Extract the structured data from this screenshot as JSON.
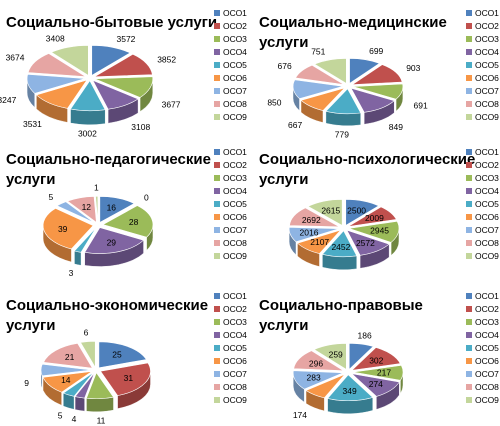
{
  "legend": {
    "items": [
      "ОСО1",
      "ОСО2",
      "ОСО3",
      "ОСО4",
      "ОСО5",
      "ОСО6",
      "ОСО7",
      "ОСО8",
      "ОСО9"
    ],
    "colors": [
      "#4f81bd",
      "#c0504d",
      "#9bbb59",
      "#8064a2",
      "#4bacc6",
      "#f79646",
      "#8eb4e3",
      "#e6a5a3",
      "#c3d69b"
    ]
  },
  "chart_data": [
    {
      "type": "pie",
      "title_lines": [
        "Социально-бытовые услуги"
      ],
      "categories": [
        "ОСО1",
        "ОСО2",
        "ОСО3",
        "ОСО4",
        "ОСО5",
        "ОСО6",
        "ОСО7",
        "ОСО8",
        "ОСО9"
      ],
      "values": [
        3572,
        3852,
        3677,
        3108,
        3002,
        3531,
        3247,
        3674,
        3408
      ]
    },
    {
      "type": "pie",
      "title_lines": [
        "Социально-медицинские",
        "услуги"
      ],
      "categories": [
        "ОСО1",
        "ОСО2",
        "ОСО3",
        "ОСО4",
        "ОСО5",
        "ОСО6",
        "ОСО7",
        "ОСО8",
        "ОСО9"
      ],
      "values": [
        699,
        903,
        691,
        849,
        779,
        667,
        850,
        676,
        751
      ]
    },
    {
      "type": "pie",
      "title_lines": [
        "Социально-педагогические",
        "услуги"
      ],
      "categories": [
        "ОСО1",
        "ОСО2",
        "ОСО3",
        "ОСО4",
        "ОСО5",
        "ОСО6",
        "ОСО7",
        "ОСО8",
        "ОСО9"
      ],
      "values": [
        16,
        0,
        28,
        29,
        3,
        39,
        5,
        12,
        1
      ]
    },
    {
      "type": "pie",
      "title_lines": [
        "Социально-психологические",
        "услуги"
      ],
      "categories": [
        "ОСО1",
        "ОСО2",
        "ОСО3",
        "ОСО4",
        "ОСО5",
        "ОСО6",
        "ОСО7",
        "ОСО8",
        "ОСО9"
      ],
      "values": [
        2500,
        2009,
        2945,
        2572,
        2452,
        2107,
        2016,
        2692,
        2615
      ]
    },
    {
      "type": "pie",
      "title_lines": [
        "Социально-экономические",
        "услуги"
      ],
      "categories": [
        "ОСО1",
        "ОСО2",
        "ОСО3",
        "ОСО4",
        "ОСО5",
        "ОСО6",
        "ОСО7",
        "ОСО8",
        "ОСО9"
      ],
      "values": [
        25,
        31,
        11,
        4,
        5,
        14,
        9,
        21,
        6
      ]
    },
    {
      "type": "pie",
      "title_lines": [
        "Социально-правовые",
        "услуги"
      ],
      "categories": [
        "ОСО1",
        "ОСО2",
        "ОСО3",
        "ОСО4",
        "ОСО5",
        "ОСО6",
        "ОСО7",
        "ОСО8",
        "ОСО9"
      ],
      "values": [
        186,
        302,
        217,
        274,
        349,
        174,
        283,
        296,
        259
      ]
    }
  ]
}
